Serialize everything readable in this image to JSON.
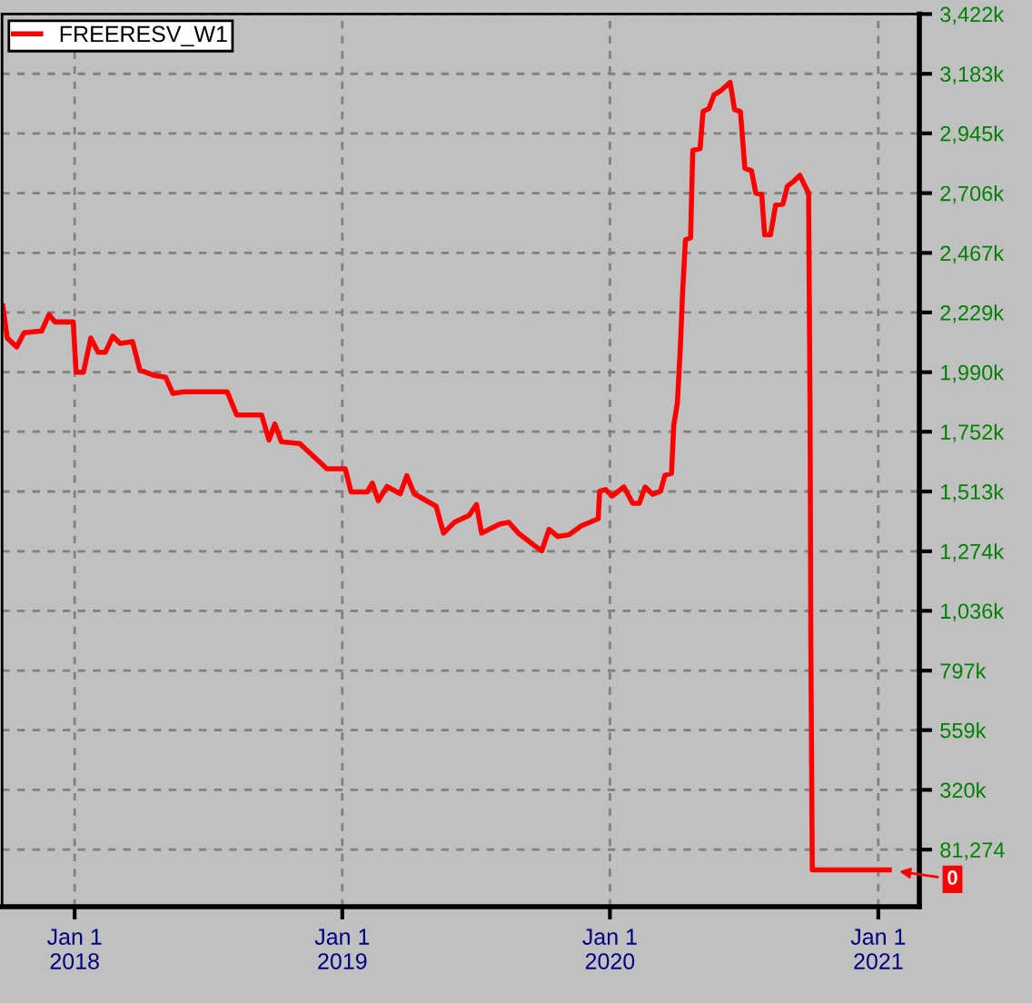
{
  "chart_data": {
    "type": "line",
    "legend": "top left",
    "grid": true,
    "line_style": "solid",
    "x": [
      "2017-09-25",
      "2017-10-01",
      "2017-10-14",
      "2017-10-24",
      "2017-11-17",
      "2017-11-27",
      "2017-12-05",
      "2017-12-30",
      "2018-01-03",
      "2018-01-13",
      "2018-01-23",
      "2018-02-02",
      "2018-02-12",
      "2018-02-22",
      "2018-03-04",
      "2018-03-21",
      "2018-03-31",
      "2018-04-20",
      "2018-05-05",
      "2018-05-15",
      "2018-05-30",
      "2018-07-28",
      "2018-08-10",
      "2018-09-13",
      "2018-09-23",
      "2018-10-01",
      "2018-10-10",
      "2018-11-04",
      "2018-11-12",
      "2018-12-11",
      "2019-01-05",
      "2019-01-13",
      "2019-02-04",
      "2019-02-11",
      "2019-02-19",
      "2019-03-03",
      "2019-03-21",
      "2019-03-30",
      "2019-04-09",
      "2019-05-09",
      "2019-05-19",
      "2019-06-03",
      "2019-06-23",
      "2019-07-03",
      "2019-07-10",
      "2019-08-04",
      "2019-08-16",
      "2019-08-29",
      "2019-09-20",
      "2019-09-30",
      "2019-10-10",
      "2019-10-22",
      "2019-11-06",
      "2019-11-23",
      "2019-12-16",
      "2019-12-18",
      "2019-12-26",
      "2020-01-04",
      "2020-01-20",
      "2020-02-01",
      "2020-02-10",
      "2020-02-18",
      "2020-02-28",
      "2020-03-10",
      "2020-03-16",
      "2020-03-25",
      "2020-03-28",
      "2020-04-02",
      "2020-04-06",
      "2020-04-09",
      "2020-04-13",
      "2020-04-20",
      "2020-04-23",
      "2020-05-03",
      "2020-05-07",
      "2020-05-15",
      "2020-05-22",
      "2020-05-31",
      "2020-06-13",
      "2020-06-19",
      "2020-06-27",
      "2020-07-03",
      "2020-07-12",
      "2020-07-18",
      "2020-07-26",
      "2020-07-30",
      "2020-08-07",
      "2020-08-14",
      "2020-08-24",
      "2020-08-30",
      "2020-09-08",
      "2020-09-16",
      "2020-09-24",
      "2020-09-28",
      "2020-09-30",
      "2020-10-01",
      "2020-10-03",
      "2021-01-16"
    ],
    "series": [
      {
        "name": "FREERESV_W1",
        "color": "#ff0000",
        "values": [
          2255000,
          2127000,
          2091000,
          2148000,
          2155000,
          2220000,
          2191000,
          2191000,
          1990000,
          1990000,
          2127000,
          2070000,
          2070000,
          2134000,
          2105000,
          2112000,
          1998000,
          1977000,
          1970000,
          1905000,
          1912000,
          1912000,
          1819000,
          1819000,
          1719000,
          1783000,
          1712000,
          1705000,
          1683000,
          1604000,
          1604000,
          1511000,
          1511000,
          1547000,
          1476000,
          1533000,
          1504000,
          1576000,
          1504000,
          1454000,
          1347000,
          1390000,
          1418000,
          1461000,
          1347000,
          1383000,
          1390000,
          1347000,
          1297000,
          1276000,
          1362000,
          1333000,
          1340000,
          1376000,
          1404000,
          1514000,
          1521000,
          1495000,
          1531000,
          1466000,
          1466000,
          1531000,
          1502000,
          1514000,
          1578000,
          1585000,
          1776000,
          1867000,
          2086000,
          2300000,
          2520000,
          2527000,
          2877000,
          2884000,
          3032000,
          3044000,
          3099000,
          3115000,
          3149000,
          3040000,
          3032000,
          2806000,
          2796000,
          2706000,
          2701000,
          2539000,
          2539000,
          2658000,
          2663000,
          2734000,
          2754000,
          2777000,
          2729000,
          2706000,
          1800000,
          906000,
          0,
          0
        ]
      }
    ],
    "xlim": [
      "2017-09-24",
      "2021-02-26"
    ],
    "xticks": [
      {
        "value": "2018-01-01",
        "label": "Jan 1\n2018"
      },
      {
        "value": "2019-01-01",
        "label": "Jan 1\n2019"
      },
      {
        "value": "2020-01-01",
        "label": "Jan 1\n2020"
      },
      {
        "value": "2021-01-01",
        "label": "Jan 1\n2021"
      }
    ],
    "ylim": [
      -147000,
      3422000
    ],
    "yticks": [
      {
        "value": 81274,
        "label": "81,274"
      },
      {
        "value": 320000,
        "label": "320k"
      },
      {
        "value": 559000,
        "label": "559k"
      },
      {
        "value": 797000,
        "label": "797k"
      },
      {
        "value": 1036000,
        "label": "1,036k"
      },
      {
        "value": 1274000,
        "label": "1,274k"
      },
      {
        "value": 1513000,
        "label": "1,513k"
      },
      {
        "value": 1752000,
        "label": "1,752k"
      },
      {
        "value": 1990000,
        "label": "1,990k"
      },
      {
        "value": 2229000,
        "label": "2,229k"
      },
      {
        "value": 2467000,
        "label": "2,467k"
      },
      {
        "value": 2706000,
        "label": "2,706k"
      },
      {
        "value": 2945000,
        "label": "2,945k"
      },
      {
        "value": 3183000,
        "label": "3,183k"
      },
      {
        "value": 3422000,
        "label": "3,422k"
      }
    ],
    "annotations": [
      {
        "text": "0",
        "x": "2021-01-16",
        "y": 0
      }
    ]
  }
}
